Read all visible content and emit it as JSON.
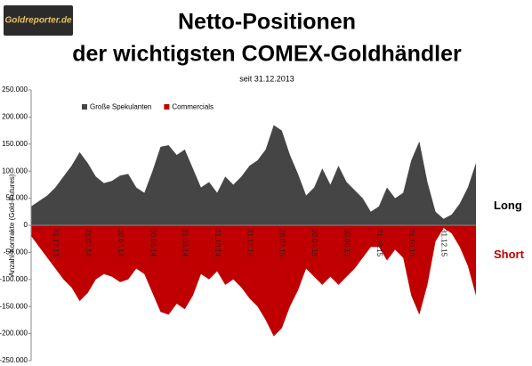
{
  "logo": "Goldreporter.de",
  "chart_data": {
    "type": "area",
    "title": [
      "Netto-Positionen",
      "der wichtigsten COMEX-Goldhändler"
    ],
    "subtitle": "seit 31.12.2013",
    "y_label": "Anzahl Kontrakte  (Gold-Futures)",
    "annotations": [
      {
        "text": "Long",
        "color": "#000000"
      },
      {
        "text": "Short",
        "color": "#c00000"
      }
    ],
    "categories": [
      null,
      null,
      null,
      "31.12.13",
      null,
      null,
      null,
      "28.02.14",
      null,
      null,
      null,
      "30.04.14",
      null,
      null,
      null,
      "30.06.14",
      null,
      null,
      null,
      "31.08.14",
      null,
      null,
      null,
      "31.10.14",
      null,
      null,
      null,
      "31.12.14",
      null,
      null,
      null,
      "28.02.15",
      null,
      null,
      null,
      "30.04.15",
      null,
      null,
      null,
      "30.06.15",
      null,
      null,
      null,
      "31.08.15",
      null,
      null,
      null,
      "31.10.15",
      null,
      null,
      null,
      "31.12.15",
      null,
      null,
      null,
      null
    ],
    "series": [
      {
        "name": "Große Spekulanten",
        "color": "#454545",
        "values": [
          35000,
          45000,
          55000,
          70000,
          90000,
          110000,
          135000,
          115000,
          90000,
          78000,
          82000,
          92000,
          95000,
          70000,
          60000,
          100000,
          145000,
          148000,
          130000,
          140000,
          105000,
          70000,
          80000,
          60000,
          90000,
          75000,
          90000,
          110000,
          120000,
          140000,
          185000,
          175000,
          130000,
          95000,
          55000,
          70000,
          105000,
          75000,
          110000,
          80000,
          65000,
          50000,
          25000,
          35000,
          70000,
          50000,
          60000,
          120000,
          155000,
          80000,
          25000,
          12000,
          20000,
          40000,
          70000,
          115000
        ]
      },
      {
        "name": "Commercials",
        "color": "#c00000",
        "values": [
          -20000,
          -40000,
          -60000,
          -80000,
          -100000,
          -115000,
          -140000,
          -125000,
          -100000,
          -90000,
          -95000,
          -105000,
          -100000,
          -80000,
          -90000,
          -125000,
          -160000,
          -165000,
          -145000,
          -155000,
          -130000,
          -90000,
          -100000,
          -85000,
          -110000,
          -100000,
          -115000,
          -135000,
          -150000,
          -175000,
          -205000,
          -190000,
          -150000,
          -120000,
          -80000,
          -95000,
          -110000,
          -95000,
          -110000,
          -95000,
          -80000,
          -60000,
          -40000,
          -40000,
          -65000,
          -45000,
          -60000,
          -130000,
          -165000,
          -110000,
          -30000,
          -5000,
          -15000,
          -40000,
          -75000,
          -130000
        ]
      }
    ],
    "ylim": [
      -250000,
      250000
    ],
    "yticks": [
      {
        "value": -250000,
        "label": "-250.000"
      },
      {
        "value": -200000,
        "label": "-200.000"
      },
      {
        "value": -150000,
        "label": "-150.000"
      },
      {
        "value": -100000,
        "label": "-100.000"
      },
      {
        "value": -50000,
        "label": "-50.000"
      },
      0,
      {
        "value": 50000,
        "label": "50.000"
      },
      {
        "value": 100000,
        "label": "100.000"
      },
      {
        "value": 150000,
        "label": "150.000"
      },
      {
        "value": 200000,
        "label": "200.000"
      },
      {
        "value": 250000,
        "label": "250.000"
      }
    ],
    "grid": false,
    "legend": "top-left"
  }
}
